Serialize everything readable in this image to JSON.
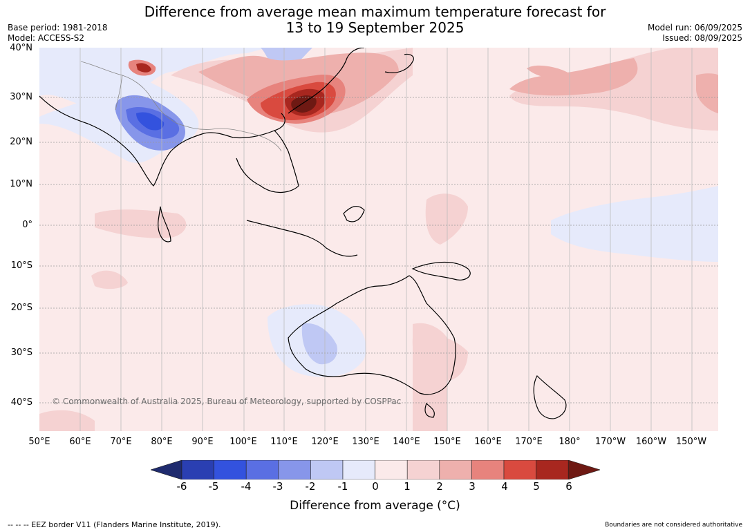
{
  "title": {
    "line1": "Difference from average mean maximum temperature forecast for",
    "line2": "13 to 19 September 2025"
  },
  "meta": {
    "base_period": "Base period: 1981-2018",
    "model": "Model: ACCESS-S2",
    "model_run": "Model run: 06/09/2025",
    "issued": "Issued: 08/09/2025"
  },
  "map": {
    "lat_labels": [
      "40°N",
      "30°N",
      "20°N",
      "10°N",
      "0°",
      "10°S",
      "20°S",
      "30°S",
      "40°S"
    ],
    "lon_labels": [
      "50°E",
      "60°E",
      "70°E",
      "80°E",
      "90°E",
      "100°E",
      "110°E",
      "120°E",
      "130°E",
      "140°E",
      "150°E",
      "160°E",
      "170°E",
      "180°",
      "170°W",
      "160°W",
      "150°W"
    ],
    "copyright": "© Commonwealth of Australia 2025, Bureau of Meteorology, supported by COSPPac"
  },
  "colorbar": {
    "ticks": [
      "-6",
      "-5",
      "-4",
      "-3",
      "-2",
      "-1",
      "0",
      "1",
      "2",
      "3",
      "4",
      "5",
      "6"
    ],
    "colors": [
      "#1f2b6e",
      "#2a3fb2",
      "#3352de",
      "#5a6fe3",
      "#8796ea",
      "#bfc8f4",
      "#e6eafb",
      "#fbeaea",
      "#f5d2d2",
      "#eeb0ad",
      "#e7837d",
      "#d94a3f",
      "#a8271f",
      "#6e1913"
    ],
    "title": "Difference from average (°C)"
  },
  "footer": {
    "eez": "--  --  -- EEZ border V11 (Flanders Marine Institute, 2019).",
    "boundaries": "Boundaries are not considered authoritative"
  }
}
